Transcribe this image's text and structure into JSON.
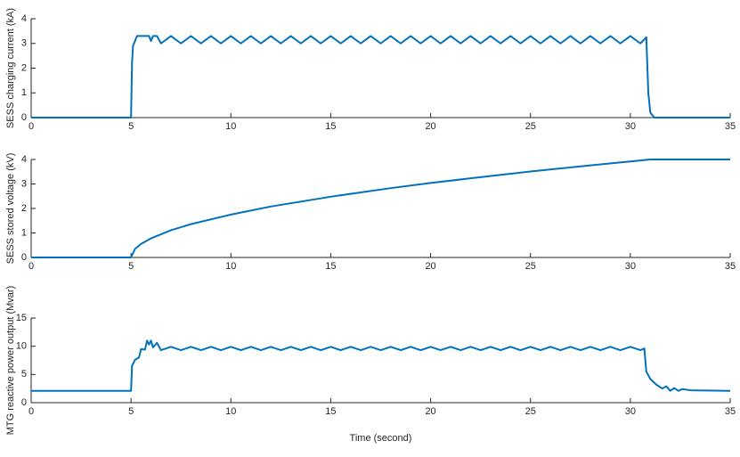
{
  "chart_data": [
    {
      "type": "line",
      "ylabel": "SESS charging current (kA)",
      "xlim": [
        0,
        35
      ],
      "xticks": [
        0,
        5,
        10,
        15,
        20,
        25,
        30,
        35
      ],
      "ylim": [
        0,
        4
      ],
      "yticks": [
        0,
        1,
        2,
        3,
        4
      ],
      "series": [
        {
          "color": "#0072bd",
          "x": [
            0,
            5,
            5.05,
            5.1,
            5.3,
            5.6,
            5.9,
            6,
            6.1,
            6.3,
            6.5,
            7,
            7.5,
            8,
            8.5,
            9,
            9.5,
            10,
            10.5,
            11,
            11.5,
            12,
            12.5,
            13,
            13.5,
            14,
            14.5,
            15,
            15.5,
            16,
            16.5,
            17,
            17.5,
            18,
            18.5,
            19,
            19.5,
            20,
            20.5,
            21,
            21.5,
            22,
            22.5,
            23,
            23.5,
            24,
            24.5,
            25,
            25.5,
            26,
            26.5,
            27,
            27.5,
            28,
            28.5,
            29,
            29.5,
            30,
            30.5,
            30.8,
            30.9,
            31,
            31.2,
            35
          ],
          "values": [
            0,
            0,
            2.2,
            2.9,
            3.3,
            3.3,
            3.3,
            3.1,
            3.3,
            3.3,
            3.0,
            3.3,
            3.0,
            3.3,
            3.0,
            3.3,
            3.0,
            3.3,
            3.0,
            3.3,
            3.0,
            3.3,
            3.0,
            3.3,
            3.0,
            3.3,
            3.0,
            3.3,
            3.0,
            3.3,
            3.0,
            3.3,
            3.0,
            3.3,
            3.0,
            3.3,
            3.0,
            3.3,
            3.0,
            3.3,
            3.0,
            3.3,
            3.0,
            3.3,
            3.0,
            3.3,
            3.0,
            3.3,
            3.0,
            3.3,
            3.0,
            3.3,
            3.0,
            3.3,
            3.0,
            3.3,
            3.0,
            3.3,
            3.0,
            3.25,
            1.0,
            0.2,
            0,
            0
          ]
        }
      ]
    },
    {
      "type": "line",
      "ylabel": "SESS stored voltage (kV)",
      "xlim": [
        0,
        35
      ],
      "xticks": [
        0,
        5,
        10,
        15,
        20,
        25,
        30,
        35
      ],
      "ylim": [
        0,
        4
      ],
      "yticks": [
        0,
        1,
        2,
        3,
        4
      ],
      "series": [
        {
          "color": "#0072bd",
          "x": [
            0,
            5,
            5.2,
            5.5,
            6,
            7,
            8,
            10,
            12,
            15,
            18,
            20,
            22,
            25,
            28,
            30,
            31,
            35
          ],
          "values": [
            0,
            0,
            0.35,
            0.55,
            0.78,
            1.11,
            1.36,
            1.75,
            2.08,
            2.48,
            2.83,
            3.04,
            3.23,
            3.51,
            3.76,
            3.92,
            4.0,
            4.0
          ]
        }
      ]
    },
    {
      "type": "line",
      "ylabel": "MTG reactive power output (Mvar)",
      "xlabel": "Time (second)",
      "xlim": [
        0,
        35
      ],
      "xticks": [
        0,
        5,
        10,
        15,
        20,
        25,
        30,
        35
      ],
      "ylim": [
        0,
        15
      ],
      "yticks": [
        0,
        5,
        10,
        15
      ],
      "series": [
        {
          "color": "#0072bd",
          "x": [
            0,
            5,
            5.05,
            5.2,
            5.4,
            5.5,
            5.7,
            5.8,
            5.9,
            6,
            6.1,
            6.3,
            6.5,
            7,
            7.5,
            8,
            8.5,
            9,
            9.5,
            10,
            10.5,
            11,
            11.5,
            12,
            12.5,
            13,
            13.5,
            14,
            14.5,
            15,
            15.5,
            16,
            16.5,
            17,
            17.5,
            18,
            18.5,
            19,
            19.5,
            20,
            20.5,
            21,
            21.5,
            22,
            22.5,
            23,
            23.5,
            24,
            24.5,
            25,
            25.5,
            26,
            26.5,
            27,
            27.5,
            28,
            28.5,
            29,
            29.5,
            30,
            30.5,
            30.7,
            30.8,
            31,
            31.3,
            31.6,
            31.8,
            32,
            32.2,
            32.4,
            32.6,
            33,
            35
          ],
          "values": [
            2.1,
            2.1,
            6.5,
            7.6,
            8,
            9.5,
            9.4,
            11,
            10.3,
            11,
            9.8,
            10.6,
            9.3,
            9.9,
            9.3,
            9.9,
            9.3,
            9.9,
            9.3,
            9.9,
            9.3,
            9.9,
            9.3,
            9.9,
            9.3,
            9.9,
            9.3,
            9.9,
            9.3,
            9.9,
            9.3,
            9.9,
            9.3,
            9.9,
            9.3,
            9.9,
            9.3,
            9.9,
            9.3,
            9.9,
            9.3,
            9.9,
            9.3,
            9.9,
            9.3,
            9.9,
            9.3,
            9.9,
            9.3,
            9.9,
            9.3,
            9.9,
            9.3,
            9.9,
            9.3,
            9.9,
            9.3,
            9.9,
            9.3,
            9.9,
            9.3,
            9.6,
            5.5,
            4.2,
            3.2,
            2.5,
            2.9,
            2.1,
            2.6,
            2.1,
            2.4,
            2.2,
            2.1
          ]
        }
      ]
    }
  ]
}
